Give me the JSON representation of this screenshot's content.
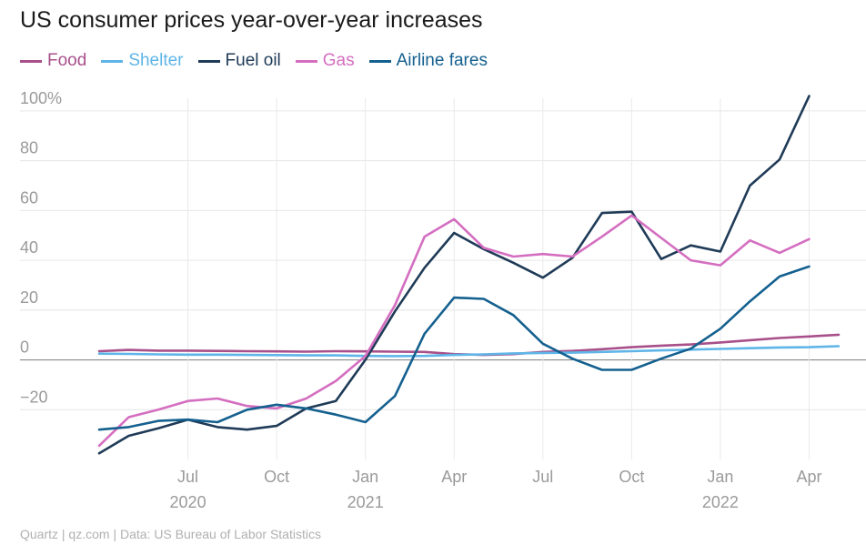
{
  "chart_data": {
    "type": "line",
    "title": "US consumer prices year-over-year increases",
    "x": [
      "2020-04",
      "2020-05",
      "2020-06",
      "2020-07",
      "2020-08",
      "2020-09",
      "2020-10",
      "2020-11",
      "2020-12",
      "2021-01",
      "2021-02",
      "2021-03",
      "2021-04",
      "2021-05",
      "2021-06",
      "2021-07",
      "2021-08",
      "2021-09",
      "2021-10",
      "2021-11",
      "2021-12",
      "2022-01",
      "2022-02",
      "2022-03",
      "2022-04",
      "2022-05"
    ],
    "x_ticks": [
      {
        "x": "2020-07",
        "label": "Jul",
        "year": "2020"
      },
      {
        "x": "2020-10",
        "label": "Oct",
        "year": ""
      },
      {
        "x": "2021-01",
        "label": "Jan",
        "year": "2021"
      },
      {
        "x": "2021-04",
        "label": "Apr",
        "year": ""
      },
      {
        "x": "2021-07",
        "label": "Jul",
        "year": ""
      },
      {
        "x": "2021-10",
        "label": "Oct",
        "year": ""
      },
      {
        "x": "2022-01",
        "label": "Jan",
        "year": "2022"
      },
      {
        "x": "2022-04",
        "label": "Apr",
        "year": ""
      }
    ],
    "y_ticks": [
      {
        "value": 100,
        "label": "100%"
      },
      {
        "value": 80,
        "label": "80"
      },
      {
        "value": 60,
        "label": "60"
      },
      {
        "value": 40,
        "label": "40"
      },
      {
        "value": 20,
        "label": "20"
      },
      {
        "value": 0,
        "label": "0"
      },
      {
        "value": -20,
        "label": "−20"
      }
    ],
    "ylim": [
      -40,
      108
    ],
    "grid": true,
    "legend_position": "top-left",
    "series": [
      {
        "name": "Food",
        "color": "#a8508a",
        "values": [
          3.5,
          4,
          3.7,
          3.7,
          3.6,
          3.5,
          3.4,
          3.3,
          3.5,
          3.4,
          3.3,
          3.2,
          2.3,
          2,
          2.3,
          3.2,
          3.6,
          4.3,
          5.1,
          5.7,
          6.2,
          7,
          7.9,
          8.8,
          9.4,
          10.1
        ]
      },
      {
        "name": "Shelter",
        "color": "#5fb5e8",
        "values": [
          2.5,
          2.4,
          2.2,
          2.1,
          2.1,
          2,
          1.9,
          1.8,
          1.8,
          1.6,
          1.5,
          1.6,
          2,
          2.2,
          2.6,
          2.8,
          2.9,
          3.2,
          3.5,
          3.8,
          4.1,
          4.4,
          4.7,
          5,
          5.1,
          5.5
        ]
      },
      {
        "name": "Fuel oil",
        "color": "#1f3b57",
        "values": [
          -37.5,
          -30.5,
          -27.5,
          -24,
          -27,
          -28,
          -26.5,
          -19.5,
          -16.5,
          0,
          19.5,
          37,
          51,
          44.5,
          39,
          33,
          41,
          59,
          59.5,
          40.5,
          46,
          43.5,
          70,
          80.5,
          106,
          null
        ]
      },
      {
        "name": "Gas",
        "color": "#d46ec0",
        "values": [
          -34.5,
          -23,
          -20,
          -16.5,
          -15.5,
          -18.5,
          -19.5,
          -15.5,
          -8.5,
          1.5,
          22,
          49.5,
          56.5,
          45,
          41.5,
          42.5,
          41.5,
          49.5,
          58,
          49,
          40,
          38,
          48,
          43,
          48.5,
          null
        ]
      },
      {
        "name": "Airline fares",
        "color": "#14608f",
        "values": [
          -28,
          -27,
          -24.5,
          -24,
          -25,
          -20,
          -18,
          -19.5,
          -22,
          -25,
          -14.5,
          10.5,
          25,
          24.5,
          18,
          6.5,
          0.5,
          -4,
          -4,
          0.5,
          4.5,
          12.5,
          23.5,
          33.5,
          37.5,
          null
        ]
      }
    ]
  },
  "source": "Quartz | qz.com | Data: US Bureau of Labor Statistics"
}
